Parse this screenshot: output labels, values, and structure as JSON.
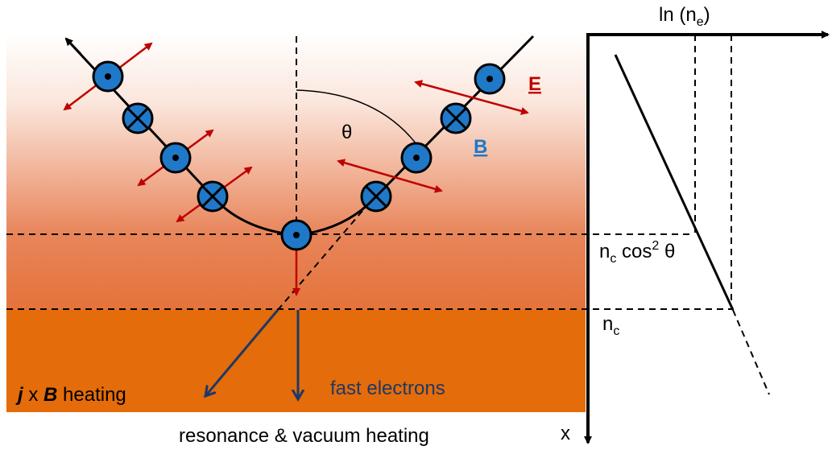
{
  "axes": {
    "y_label": {
      "main": "ln (n",
      "sub": "e",
      "close": ")"
    },
    "x_label": "x"
  },
  "levels": {
    "critical_cos": {
      "n": "n",
      "sub": "c",
      "cos": " cos",
      "sup": "2",
      "theta": " θ"
    },
    "critical": {
      "n": "n",
      "sub": "c"
    }
  },
  "angle_label": "θ",
  "field_labels": {
    "E": "E",
    "B": "B"
  },
  "heating_labels": {
    "jxb": {
      "j": "j",
      "x": " x ",
      "b": "B",
      "rest": " heating"
    },
    "fast": "fast electrons",
    "resonance": "resonance & vacuum heating"
  }
}
